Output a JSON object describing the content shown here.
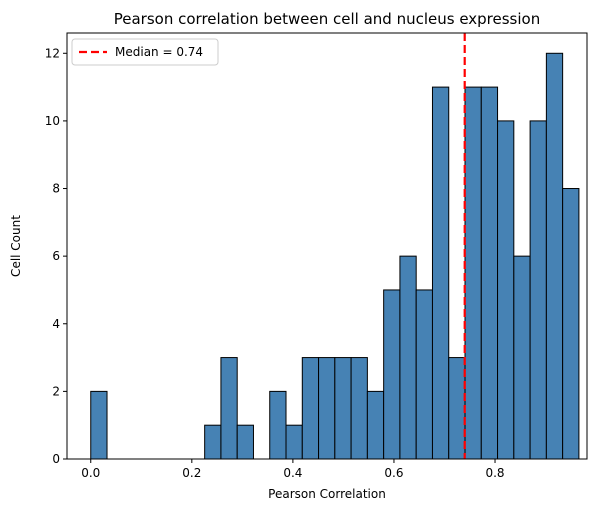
{
  "chart_data": {
    "type": "bar",
    "subtype": "histogram",
    "title": "Pearson correlation between cell and nucleus expression",
    "xlabel": "Pearson Correlation",
    "ylabel": "Cell Count",
    "xlim": [
      -0.047,
      0.982
    ],
    "ylim": [
      0,
      12.6
    ],
    "bin_start": 0.0,
    "bin_width": 0.0322,
    "counts": [
      2,
      0,
      0,
      0,
      0,
      0,
      0,
      1,
      3,
      1,
      0,
      2,
      1,
      3,
      3,
      3,
      3,
      2,
      5,
      6,
      5,
      11,
      3,
      11,
      11,
      10,
      6,
      10,
      12,
      8
    ],
    "xticks": [
      0.0,
      0.2,
      0.4,
      0.6,
      0.8
    ],
    "xtick_labels": [
      "0.0",
      "0.2",
      "0.4",
      "0.6",
      "0.8"
    ],
    "yticks": [
      0,
      2,
      4,
      6,
      8,
      10,
      12
    ],
    "ytick_labels": [
      "0",
      "2",
      "4",
      "6",
      "8",
      "10",
      "12"
    ],
    "median": 0.74,
    "legend": {
      "label": "Median = 0.74",
      "placement": "top-left"
    },
    "colors": {
      "bar_fill": "#4682b4",
      "bar_edge": "#000000",
      "median_line": "#ff0000"
    }
  }
}
